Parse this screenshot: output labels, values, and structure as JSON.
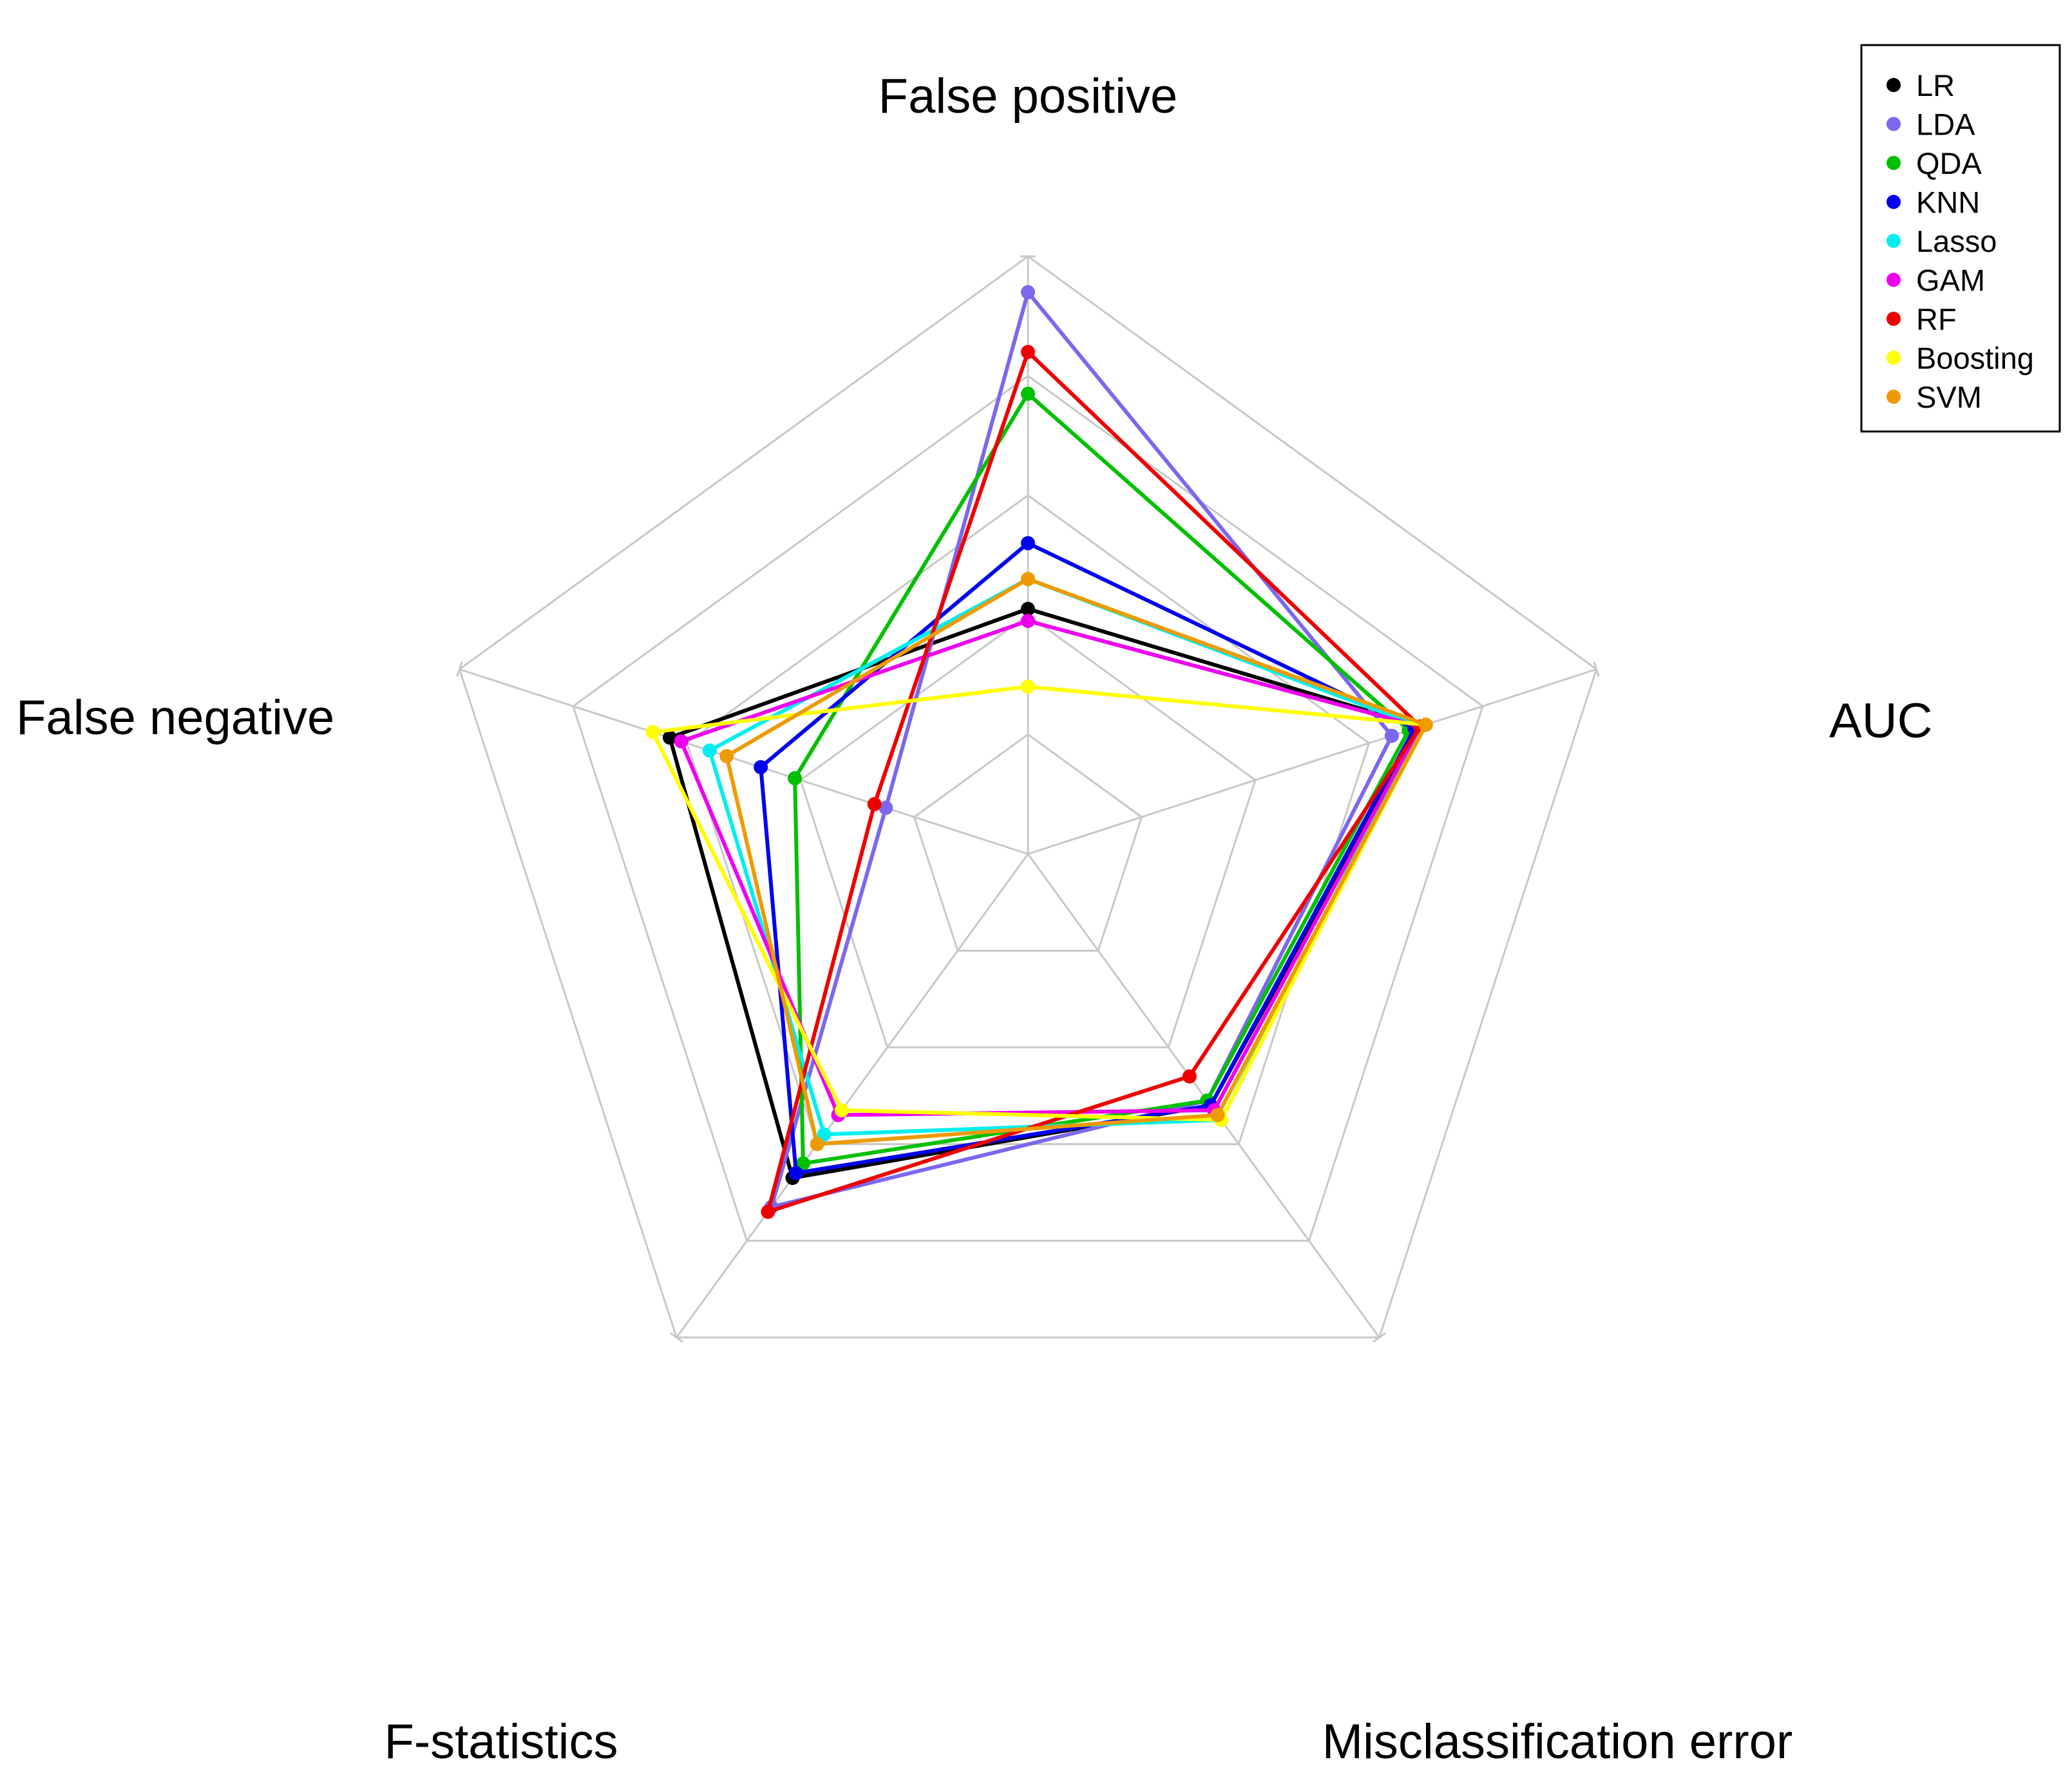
{
  "chart_data": {
    "type": "radar",
    "axes": [
      "False positive",
      "AUC",
      "Misclassification error",
      "F-statistics",
      "False negative"
    ],
    "scale_levels": 5,
    "value_range": [
      0,
      1
    ],
    "grid": true,
    "grid_color": "#c8c8c8",
    "legend_position": "top-right",
    "series": [
      {
        "name": "LR",
        "color": "#000000",
        "values": [
          0.41,
          0.69,
          0.52,
          0.67,
          0.63
        ]
      },
      {
        "name": "LDA",
        "color": "#7b68ee",
        "values": [
          0.94,
          0.64,
          0.51,
          0.73,
          0.25
        ]
      },
      {
        "name": "QDA",
        "color": "#00c000",
        "values": [
          0.77,
          0.67,
          0.51,
          0.64,
          0.41
        ]
      },
      {
        "name": "KNN",
        "color": "#0000ee",
        "values": [
          0.52,
          0.68,
          0.52,
          0.66,
          0.47
        ]
      },
      {
        "name": "Lasso",
        "color": "#00eeee",
        "values": [
          0.46,
          0.69,
          0.55,
          0.58,
          0.56
        ]
      },
      {
        "name": "GAM",
        "color": "#ee00ee",
        "values": [
          0.39,
          0.69,
          0.53,
          0.54,
          0.61
        ]
      },
      {
        "name": "RF",
        "color": "#ee0000",
        "values": [
          0.84,
          0.69,
          0.46,
          0.74,
          0.27
        ]
      },
      {
        "name": "Boosting",
        "color": "#ffff00",
        "values": [
          0.28,
          0.7,
          0.55,
          0.53,
          0.66
        ]
      },
      {
        "name": "SVM",
        "color": "#ee9a00",
        "values": [
          0.46,
          0.7,
          0.54,
          0.6,
          0.53
        ]
      }
    ]
  }
}
